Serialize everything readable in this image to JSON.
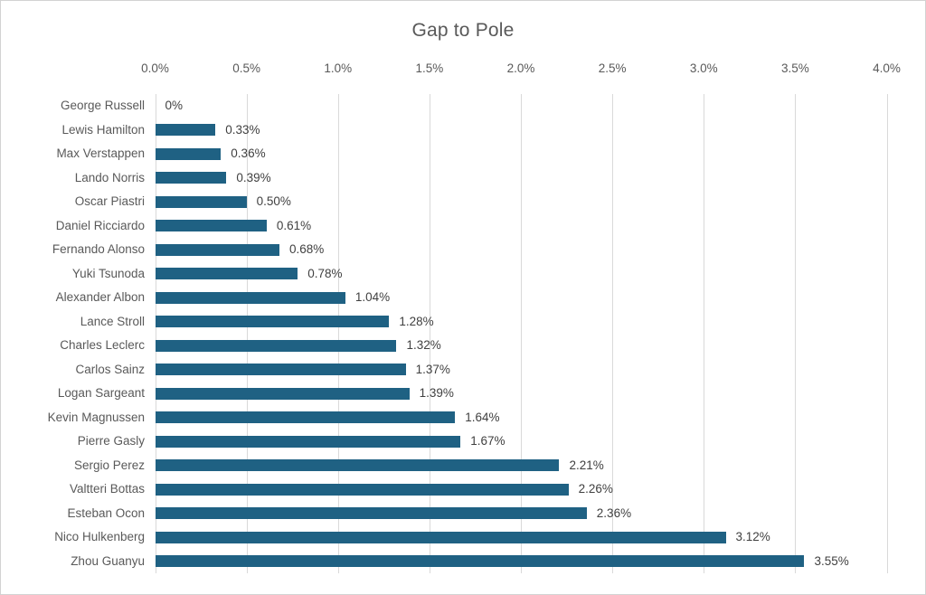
{
  "chart_data": {
    "type": "bar",
    "orientation": "horizontal",
    "title": "Gap to Pole",
    "categories": [
      "George Russell",
      "Lewis Hamilton",
      "Max Verstappen",
      "Lando Norris",
      "Oscar Piastri",
      "Daniel Ricciardo",
      "Fernando Alonso",
      "Yuki Tsunoda",
      "Alexander Albon",
      "Lance Stroll",
      "Charles Leclerc",
      "Carlos Sainz",
      "Logan Sargeant",
      "Kevin Magnussen",
      "Pierre Gasly",
      "Sergio Perez",
      "Valtteri Bottas",
      "Esteban Ocon",
      "Nico Hulkenberg",
      "Zhou Guanyu"
    ],
    "values": [
      0,
      0.33,
      0.36,
      0.39,
      0.5,
      0.61,
      0.68,
      0.78,
      1.04,
      1.28,
      1.32,
      1.37,
      1.39,
      1.64,
      1.67,
      2.21,
      2.26,
      2.36,
      3.12,
      3.55
    ],
    "data_labels": [
      "0%",
      "0.33%",
      "0.36%",
      "0.39%",
      "0.50%",
      "0.61%",
      "0.68%",
      "0.78%",
      "1.04%",
      "1.28%",
      "1.32%",
      "1.37%",
      "1.39%",
      "1.64%",
      "1.67%",
      "2.21%",
      "2.26%",
      "2.36%",
      "3.12%",
      "3.55%"
    ],
    "xticks": [
      "0.0%",
      "0.5%",
      "1.0%",
      "1.5%",
      "2.0%",
      "2.5%",
      "3.0%",
      "3.5%",
      "4.0%"
    ],
    "xlim": [
      0,
      4.0
    ],
    "xlabel": "",
    "ylabel": "",
    "grid": "vertical",
    "legend": "none",
    "bar_color": "#1F6183",
    "gridline_color": "#D9D9D9",
    "title_color": "#595959",
    "axis_label_color": "#595959",
    "category_label_color": "#595959",
    "value_label_color": "#404040"
  }
}
